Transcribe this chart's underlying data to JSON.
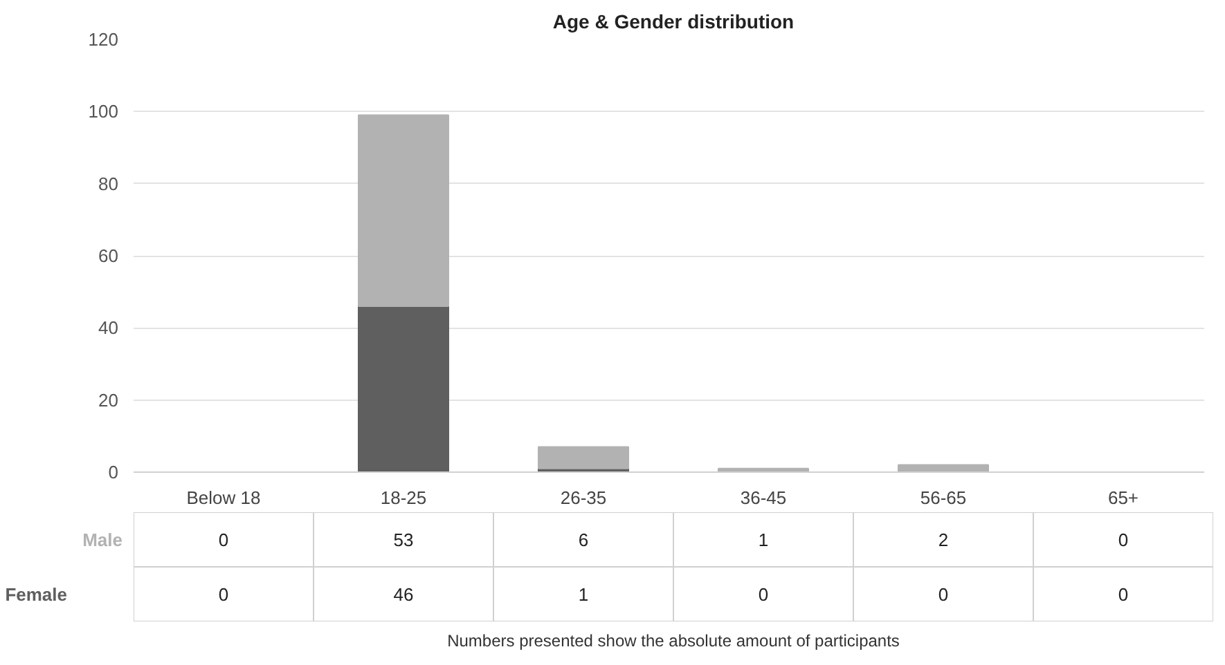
{
  "chart_data": {
    "type": "bar",
    "title": "Age & Gender distribution",
    "categories": [
      "Below 18",
      "18-25",
      "26-35",
      "36-45",
      "56-65",
      "65+"
    ],
    "stacked": true,
    "series": [
      {
        "name": "Female",
        "color": "#5f5f5f",
        "values": [
          0,
          46,
          1,
          0,
          0,
          0
        ]
      },
      {
        "name": "Male",
        "color": "#b2b2b2",
        "values": [
          0,
          53,
          6,
          1,
          2,
          0
        ]
      }
    ],
    "ylim": [
      0,
      120
    ],
    "yticks": [
      0,
      20,
      40,
      60,
      80,
      100,
      120
    ],
    "grid": "y",
    "data_labels": true,
    "annotations": [
      "Numbers presented show the absolute amount of participants"
    ]
  }
}
